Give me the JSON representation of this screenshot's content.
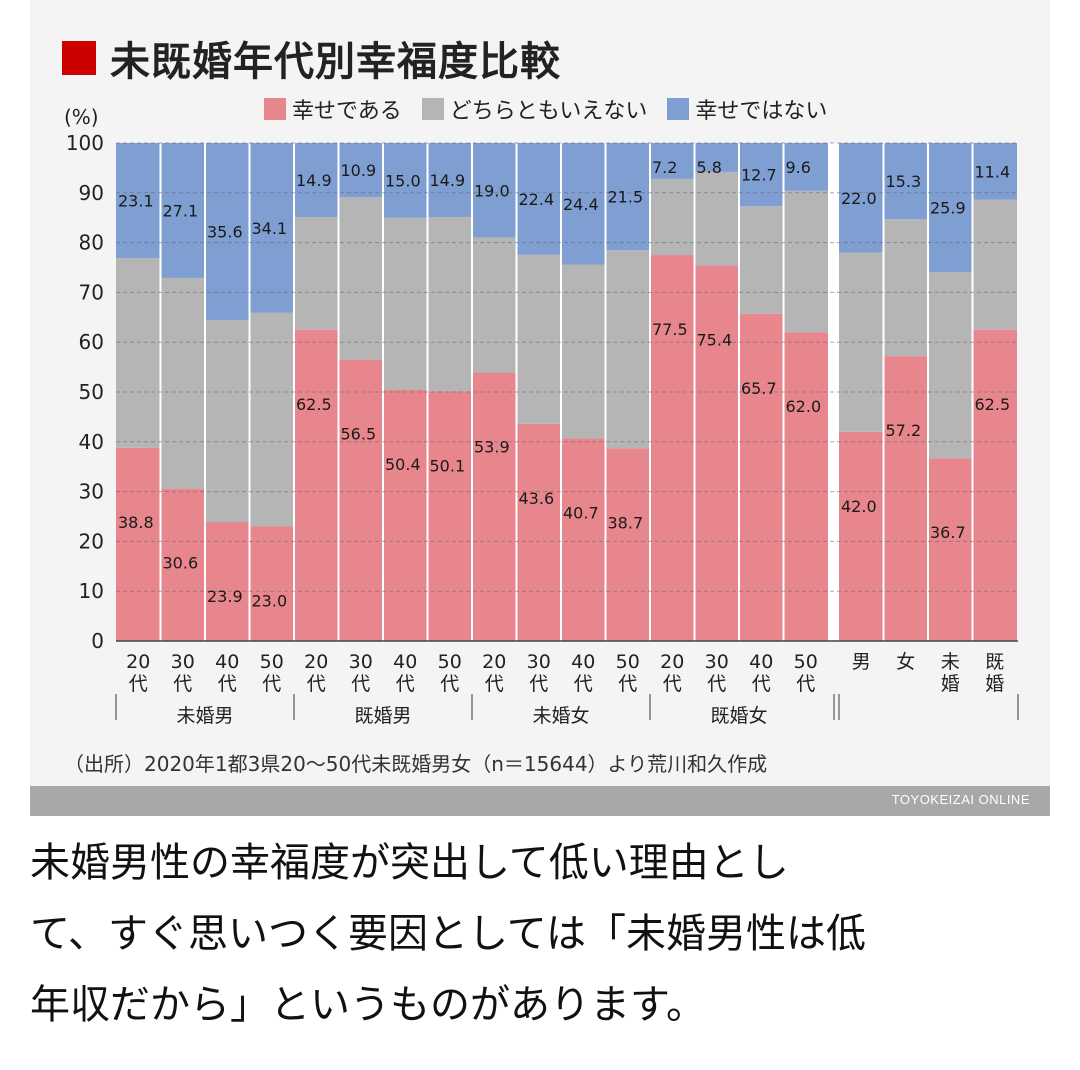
{
  "title": "未既婚年代別幸福度比較",
  "legend": [
    {
      "label": "幸せである",
      "color": "#e8868d"
    },
    {
      "label": "どちらともいえない",
      "color": "#b5b5b5"
    },
    {
      "label": "幸せではない",
      "color": "#7f9fd2"
    }
  ],
  "chart_data": {
    "type": "bar",
    "stacked": true,
    "ylabel": "(%)",
    "ylim": [
      0,
      100
    ],
    "yticks": [
      0,
      10,
      20,
      30,
      40,
      50,
      60,
      70,
      80,
      90,
      100
    ],
    "grid": true,
    "bars": [
      {
        "label": [
          "20",
          "代"
        ],
        "group": "未婚男",
        "happy": 38.8,
        "unhappy": 23.1
      },
      {
        "label": [
          "30",
          "代"
        ],
        "group": "未婚男",
        "happy": 30.6,
        "unhappy": 27.1
      },
      {
        "label": [
          "40",
          "代"
        ],
        "group": "未婚男",
        "happy": 23.9,
        "unhappy": 35.6
      },
      {
        "label": [
          "50",
          "代"
        ],
        "group": "未婚男",
        "happy": 23.0,
        "unhappy": 34.1
      },
      {
        "label": [
          "20",
          "代"
        ],
        "group": "既婚男",
        "happy": 62.5,
        "unhappy": 14.9
      },
      {
        "label": [
          "30",
          "代"
        ],
        "group": "既婚男",
        "happy": 56.5,
        "unhappy": 10.9
      },
      {
        "label": [
          "40",
          "代"
        ],
        "group": "既婚男",
        "happy": 50.4,
        "unhappy": 15.0
      },
      {
        "label": [
          "50",
          "代"
        ],
        "group": "既婚男",
        "happy": 50.1,
        "unhappy": 14.9
      },
      {
        "label": [
          "20",
          "代"
        ],
        "group": "未婚女",
        "happy": 53.9,
        "unhappy": 19.0
      },
      {
        "label": [
          "30",
          "代"
        ],
        "group": "未婚女",
        "happy": 43.6,
        "unhappy": 22.4
      },
      {
        "label": [
          "40",
          "代"
        ],
        "group": "未婚女",
        "happy": 40.7,
        "unhappy": 24.4
      },
      {
        "label": [
          "50",
          "代"
        ],
        "group": "未婚女",
        "happy": 38.7,
        "unhappy": 21.5
      },
      {
        "label": [
          "20",
          "代"
        ],
        "group": "既婚女",
        "happy": 77.5,
        "unhappy": 7.2
      },
      {
        "label": [
          "30",
          "代"
        ],
        "group": "既婚女",
        "happy": 75.4,
        "unhappy": 5.8
      },
      {
        "label": [
          "40",
          "代"
        ],
        "group": "既婚女",
        "happy": 65.7,
        "unhappy": 12.7
      },
      {
        "label": [
          "50",
          "代"
        ],
        "group": "既婚女",
        "happy": 62.0,
        "unhappy": 9.6
      },
      {
        "label": [
          "男"
        ],
        "group": "",
        "happy": 42.0,
        "unhappy": 22.0
      },
      {
        "label": [
          "女"
        ],
        "group": "",
        "happy": 57.2,
        "unhappy": 15.3
      },
      {
        "label": [
          "未",
          "婚"
        ],
        "group": "",
        "happy": 36.7,
        "unhappy": 25.9
      },
      {
        "label": [
          "既",
          "婚"
        ],
        "group": "",
        "happy": 62.5,
        "unhappy": 11.4
      }
    ],
    "groups": [
      "未婚男",
      "既婚男",
      "未婚女",
      "既婚女"
    ]
  },
  "source": "（出所）2020年1都3県20〜50代未既婚男女（n＝15644）より荒川和久作成",
  "footer_brand": "TOYOKEIZAI ONLINE",
  "article_lines": [
    "  未婚男性の幸福度が突出して低い理由とし",
    "て、すぐ思いつく要因としては「未婚男性は低",
    "年収だから」というものがあります。"
  ]
}
